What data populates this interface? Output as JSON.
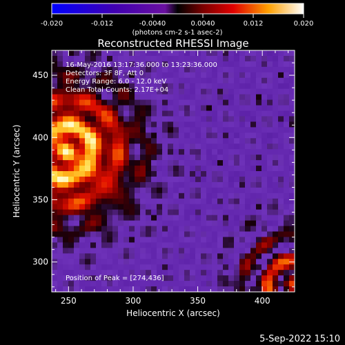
{
  "chart_data": {
    "type": "heatmap",
    "title": "Reconstructed RHESSI Image",
    "xlabel": "Heliocentric X (arcsec)",
    "ylabel": "Heliocentric Y (arcsec)",
    "xlim": [
      237,
      425
    ],
    "ylim": [
      276,
      470
    ],
    "xticks": [
      250,
      300,
      350,
      400
    ],
    "yticks": [
      300,
      350,
      400,
      450
    ],
    "colorbar": {
      "min": -0.02,
      "max": 0.02,
      "ticks": [
        "-0.020",
        "-0.012",
        "-0.0040",
        "0.0040",
        "0.012",
        "0.020"
      ],
      "unit_label": "(photons cm-2 s-1 asec-2)"
    },
    "annotations": [
      "16-May-2016 13:17:36.000 to 13:23:36.000",
      "Detectors: 3F 8F, Att 0",
      "Energy Range: 6.0 - 12.0 keV",
      "Clean   Total Counts: 2.17E+04"
    ],
    "peak_label": "Position of Peak = [274,436]",
    "peak": [
      274,
      436
    ],
    "colors": {
      "background": "#000000",
      "low": "#5a1aa0",
      "high": "#fff4a0"
    }
  },
  "footer": {
    "date": "5-Sep-2022 15:10"
  }
}
